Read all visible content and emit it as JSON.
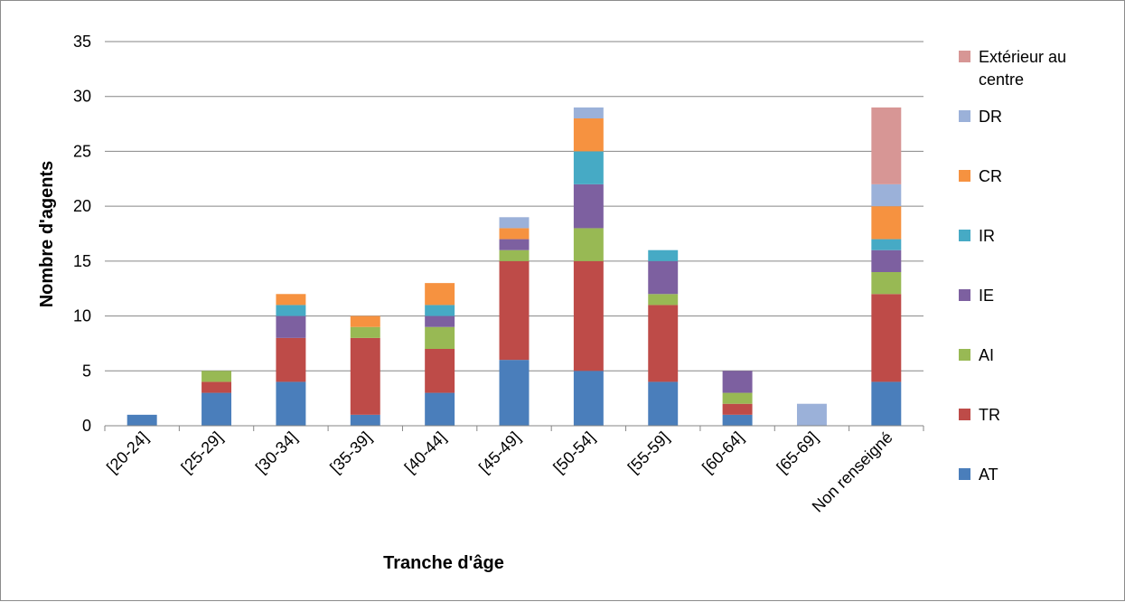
{
  "chart_data": {
    "type": "bar",
    "stacked": true,
    "xlabel": "Tranche d'âge",
    "ylabel": "Nombre d'agents",
    "ylim": [
      0,
      35
    ],
    "yticks": [
      0,
      5,
      10,
      15,
      20,
      25,
      30,
      35
    ],
    "grid": "horizontal",
    "legend_position": "right",
    "categories": [
      "[20-24]",
      "[25-29]",
      "[30-34]",
      "[35-39]",
      "[40-44]",
      "[45-49]",
      "[50-54]",
      "[55-59]",
      "[60-64]",
      "[65-69]",
      "Non renseigné"
    ],
    "series": [
      {
        "name": "AT",
        "color": "#4a7ebb",
        "values": [
          1,
          3,
          4,
          1,
          3,
          6,
          5,
          4,
          1,
          0,
          4
        ]
      },
      {
        "name": "TR",
        "color": "#be4b48",
        "values": [
          0,
          1,
          4,
          7,
          4,
          9,
          10,
          7,
          1,
          0,
          8
        ]
      },
      {
        "name": "AI",
        "color": "#98b954",
        "values": [
          0,
          1,
          0,
          1,
          2,
          1,
          3,
          1,
          1,
          0,
          2
        ]
      },
      {
        "name": "IE",
        "color": "#7d60a0",
        "values": [
          0,
          0,
          2,
          0,
          1,
          1,
          4,
          3,
          2,
          0,
          2
        ]
      },
      {
        "name": "IR",
        "color": "#46aac5",
        "values": [
          0,
          0,
          1,
          0,
          1,
          0,
          3,
          1,
          0,
          0,
          1
        ]
      },
      {
        "name": "CR",
        "color": "#f69240",
        "values": [
          0,
          0,
          1,
          1,
          2,
          1,
          3,
          0,
          0,
          0,
          3
        ]
      },
      {
        "name": "DR",
        "color": "#9bb1d9",
        "values": [
          0,
          0,
          0,
          0,
          0,
          1,
          1,
          0,
          0,
          2,
          2
        ]
      },
      {
        "name": "Extérieur au centre",
        "color": "#d79695",
        "values": [
          0,
          0,
          0,
          0,
          0,
          0,
          0,
          0,
          0,
          0,
          7
        ]
      }
    ],
    "legend": [
      {
        "lines": [
          "Extérieur au",
          "centre"
        ],
        "color": "#d79695"
      },
      {
        "lines": [
          "DR"
        ],
        "color": "#9bb1d9"
      },
      {
        "lines": [
          "CR"
        ],
        "color": "#f69240"
      },
      {
        "lines": [
          "IR"
        ],
        "color": "#46aac5"
      },
      {
        "lines": [
          "IE"
        ],
        "color": "#7d60a0"
      },
      {
        "lines": [
          "AI"
        ],
        "color": "#98b954"
      },
      {
        "lines": [
          "TR"
        ],
        "color": "#be4b48"
      },
      {
        "lines": [
          "AT"
        ],
        "color": "#4a7ebb"
      }
    ]
  }
}
